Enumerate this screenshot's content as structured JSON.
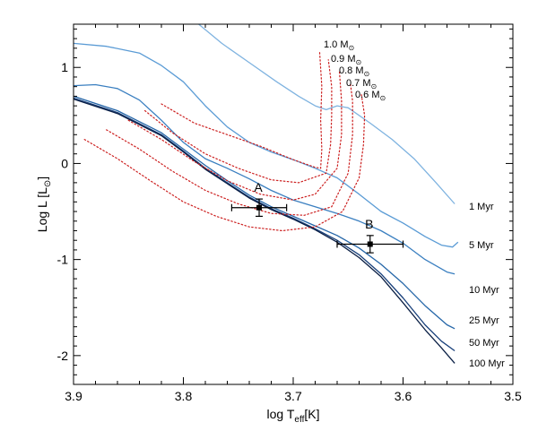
{
  "chart_data": {
    "type": "line",
    "title": "",
    "xlabel": {
      "main": "log T",
      "sub": "eff",
      "tail": "[K]"
    },
    "ylabel": {
      "main": "Log L [L",
      "sub": "⊙",
      "tail": "]"
    },
    "xlim": [
      3.9,
      3.5
    ],
    "ylim": [
      -2.3,
      1.45
    ],
    "x_reversed": true,
    "xticks": [
      3.9,
      3.8,
      3.7,
      3.6,
      3.5
    ],
    "xtick_labels": [
      "3.9",
      "3.8",
      "3.7",
      "3.6",
      "3.5"
    ],
    "yticks": [
      -2,
      -1,
      0,
      1
    ],
    "ytick_labels": [
      "-2",
      "-1",
      "0",
      "1"
    ],
    "grid": false,
    "isochrones": [
      {
        "label": "1 Myr",
        "color": "#7fb3e0",
        "points": [
          [
            3.786,
            1.45
          ],
          [
            3.765,
            1.25
          ],
          [
            3.74,
            1.05
          ],
          [
            3.715,
            0.85
          ],
          [
            3.695,
            0.7
          ],
          [
            3.68,
            0.6
          ],
          [
            3.67,
            0.56
          ],
          [
            3.66,
            0.6
          ],
          [
            3.65,
            0.58
          ],
          [
            3.63,
            0.42
          ],
          [
            3.61,
            0.25
          ],
          [
            3.59,
            0.05
          ],
          [
            3.57,
            -0.2
          ],
          [
            3.553,
            -0.42
          ]
        ]
      },
      {
        "label": "5 Myr",
        "color": "#5a9bd5",
        "points": [
          [
            3.9,
            1.25
          ],
          [
            3.87,
            1.22
          ],
          [
            3.84,
            1.15
          ],
          [
            3.82,
            1.02
          ],
          [
            3.8,
            0.85
          ],
          [
            3.78,
            0.6
          ],
          [
            3.76,
            0.38
          ],
          [
            3.74,
            0.22
          ],
          [
            3.72,
            0.12
          ],
          [
            3.7,
            0.04
          ],
          [
            3.68,
            -0.05
          ],
          [
            3.66,
            -0.15
          ],
          [
            3.64,
            -0.32
          ],
          [
            3.62,
            -0.5
          ],
          [
            3.6,
            -0.62
          ],
          [
            3.58,
            -0.76
          ],
          [
            3.565,
            -0.85
          ],
          [
            3.555,
            -0.87
          ],
          [
            3.55,
            -0.82
          ]
        ]
      },
      {
        "label": "10 Myr",
        "color": "#3a7fc0",
        "points": [
          [
            3.9,
            0.81
          ],
          [
            3.88,
            0.82
          ],
          [
            3.86,
            0.78
          ],
          [
            3.84,
            0.66
          ],
          [
            3.82,
            0.45
          ],
          [
            3.8,
            0.22
          ],
          [
            3.78,
            0.05
          ],
          [
            3.76,
            -0.05
          ],
          [
            3.74,
            -0.16
          ],
          [
            3.72,
            -0.28
          ],
          [
            3.7,
            -0.38
          ],
          [
            3.68,
            -0.45
          ],
          [
            3.66,
            -0.52
          ],
          [
            3.64,
            -0.6
          ],
          [
            3.62,
            -0.7
          ],
          [
            3.6,
            -0.83
          ],
          [
            3.58,
            -1.0
          ],
          [
            3.56,
            -1.13
          ],
          [
            3.553,
            -1.15
          ]
        ]
      },
      {
        "label": "25 Myr",
        "color": "#2566a8",
        "points": [
          [
            3.9,
            0.7
          ],
          [
            3.86,
            0.55
          ],
          [
            3.82,
            0.32
          ],
          [
            3.8,
            0.15
          ],
          [
            3.78,
            -0.02
          ],
          [
            3.76,
            -0.18
          ],
          [
            3.74,
            -0.33
          ],
          [
            3.72,
            -0.45
          ],
          [
            3.7,
            -0.55
          ],
          [
            3.68,
            -0.65
          ],
          [
            3.66,
            -0.75
          ],
          [
            3.64,
            -0.88
          ],
          [
            3.62,
            -1.05
          ],
          [
            3.6,
            -1.25
          ],
          [
            3.58,
            -1.48
          ],
          [
            3.56,
            -1.68
          ],
          [
            3.553,
            -1.72
          ]
        ]
      },
      {
        "label": "50 Myr",
        "color": "#173f7a",
        "points": [
          [
            3.9,
            0.68
          ],
          [
            3.86,
            0.53
          ],
          [
            3.82,
            0.3
          ],
          [
            3.8,
            0.13
          ],
          [
            3.78,
            -0.05
          ],
          [
            3.76,
            -0.2
          ],
          [
            3.74,
            -0.35
          ],
          [
            3.72,
            -0.47
          ],
          [
            3.7,
            -0.57
          ],
          [
            3.68,
            -0.68
          ],
          [
            3.66,
            -0.8
          ],
          [
            3.64,
            -0.95
          ],
          [
            3.62,
            -1.15
          ],
          [
            3.6,
            -1.4
          ],
          [
            3.58,
            -1.68
          ],
          [
            3.565,
            -1.85
          ],
          [
            3.553,
            -1.95
          ]
        ]
      },
      {
        "label": "100 Myr",
        "color": "#0a1f45",
        "points": [
          [
            3.9,
            0.67
          ],
          [
            3.86,
            0.52
          ],
          [
            3.82,
            0.29
          ],
          [
            3.8,
            0.12
          ],
          [
            3.78,
            -0.06
          ],
          [
            3.76,
            -0.21
          ],
          [
            3.74,
            -0.36
          ],
          [
            3.72,
            -0.48
          ],
          [
            3.7,
            -0.58
          ],
          [
            3.68,
            -0.69
          ],
          [
            3.66,
            -0.82
          ],
          [
            3.64,
            -0.98
          ],
          [
            3.62,
            -1.18
          ],
          [
            3.6,
            -1.45
          ],
          [
            3.58,
            -1.73
          ],
          [
            3.565,
            -1.92
          ],
          [
            3.553,
            -2.08
          ]
        ]
      }
    ],
    "tracks": [
      {
        "label": "1.0 M",
        "color": "#cc1f1f",
        "points": [
          [
            3.82,
            0.62
          ],
          [
            3.79,
            0.42
          ],
          [
            3.76,
            0.3
          ],
          [
            3.73,
            0.18
          ],
          [
            3.7,
            0.04
          ],
          [
            3.68,
            -0.04
          ],
          [
            3.675,
            -0.05
          ],
          [
            3.674,
            0.15
          ],
          [
            3.675,
            0.45
          ],
          [
            3.674,
            0.8
          ],
          [
            3.676,
            1.17
          ]
        ]
      },
      {
        "label": "0.9 M",
        "color": "#cc1f1f",
        "points": [
          [
            3.835,
            0.55
          ],
          [
            3.81,
            0.32
          ],
          [
            3.78,
            0.1
          ],
          [
            3.75,
            -0.05
          ],
          [
            3.72,
            -0.17
          ],
          [
            3.695,
            -0.2
          ],
          [
            3.67,
            -0.1
          ],
          [
            3.666,
            0.2
          ],
          [
            3.665,
            0.5
          ],
          [
            3.665,
            0.8
          ],
          [
            3.668,
            1.08
          ]
        ]
      },
      {
        "label": "0.8 M",
        "color": "#cc1f1f",
        "points": [
          [
            3.85,
            0.45
          ],
          [
            3.82,
            0.25
          ],
          [
            3.79,
            0.02
          ],
          [
            3.76,
            -0.18
          ],
          [
            3.73,
            -0.32
          ],
          [
            3.7,
            -0.38
          ],
          [
            3.68,
            -0.32
          ],
          [
            3.66,
            -0.05
          ],
          [
            3.656,
            0.3
          ],
          [
            3.656,
            0.65
          ],
          [
            3.658,
            0.96
          ]
        ]
      },
      {
        "label": "0.7 M",
        "color": "#cc1f1f",
        "points": [
          [
            3.87,
            0.35
          ],
          [
            3.84,
            0.15
          ],
          [
            3.81,
            -0.08
          ],
          [
            3.78,
            -0.28
          ],
          [
            3.75,
            -0.42
          ],
          [
            3.72,
            -0.52
          ],
          [
            3.69,
            -0.54
          ],
          [
            3.665,
            -0.45
          ],
          [
            3.65,
            -0.1
          ],
          [
            3.646,
            0.3
          ],
          [
            3.646,
            0.65
          ],
          [
            3.648,
            0.84
          ]
        ]
      },
      {
        "label": "0.6 M",
        "color": "#cc1f1f",
        "points": [
          [
            3.89,
            0.25
          ],
          [
            3.86,
            0.05
          ],
          [
            3.83,
            -0.18
          ],
          [
            3.8,
            -0.4
          ],
          [
            3.77,
            -0.55
          ],
          [
            3.74,
            -0.66
          ],
          [
            3.71,
            -0.7
          ],
          [
            3.68,
            -0.66
          ],
          [
            3.655,
            -0.5
          ],
          [
            3.64,
            -0.15
          ],
          [
            3.636,
            0.2
          ],
          [
            3.635,
            0.5
          ],
          [
            3.638,
            0.72
          ]
        ]
      }
    ],
    "points": [
      {
        "label": "A",
        "x": 3.731,
        "y": -0.46,
        "xerr": 0.025,
        "yerr": 0.09
      },
      {
        "label": "B",
        "x": 3.63,
        "y": -0.84,
        "xerr": 0.03,
        "yerr": 0.09
      }
    ]
  }
}
